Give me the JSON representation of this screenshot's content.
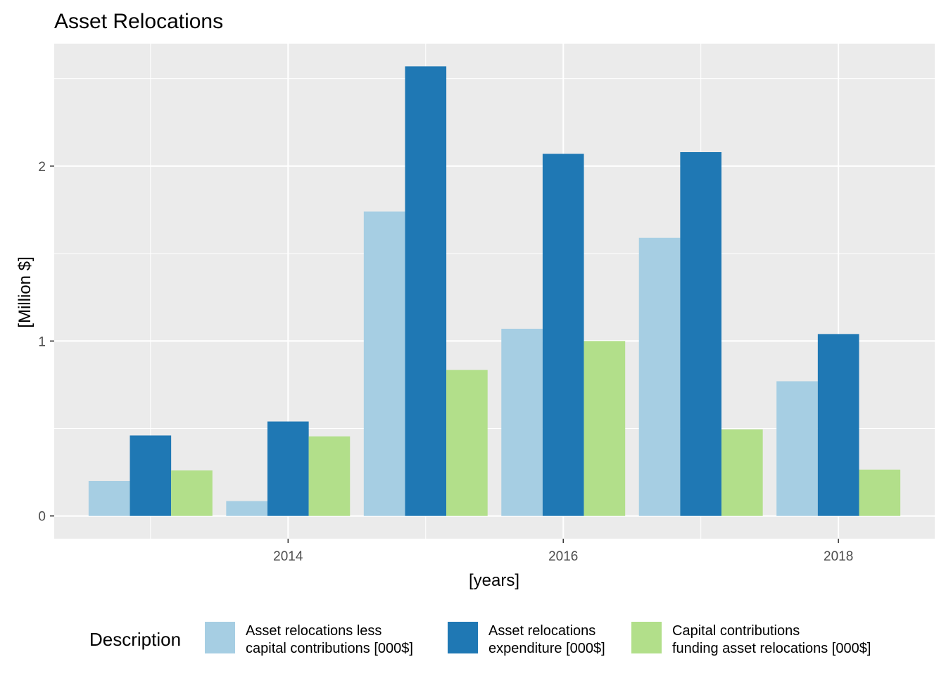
{
  "chart_data": {
    "type": "bar",
    "title": "Asset Relocations",
    "xlabel": "[years]",
    "ylabel": "[Million $]",
    "categories": [
      2013,
      2014,
      2015,
      2016,
      2017,
      2018
    ],
    "xlim": [
      2012.3,
      2018.7
    ],
    "ylim": [
      -0.13,
      2.7
    ],
    "x_ticks": [
      2014,
      2016,
      2018
    ],
    "y_ticks": [
      0,
      1,
      2
    ],
    "x_tick_labels": [
      "2014",
      "2016",
      "2018"
    ],
    "y_tick_labels": [
      "0",
      "1",
      "2"
    ],
    "grid": true,
    "legend_position": "bottom",
    "legend_title": "Description",
    "series": [
      {
        "name": "Asset relocations less capital contributions [000$]",
        "label_lines": [
          "Asset relocations less",
          "capital contributions [000$]"
        ],
        "color": "#A6CEE3",
        "values": [
          0.2,
          0.085,
          1.74,
          1.07,
          1.59,
          0.77
        ]
      },
      {
        "name": "Asset relocations expenditure [000$]",
        "label_lines": [
          "Asset relocations",
          "expenditure [000$]"
        ],
        "color": "#1F78B4",
        "values": [
          0.46,
          0.54,
          2.57,
          2.07,
          2.08,
          1.04
        ]
      },
      {
        "name": "Capital contributions funding asset relocations [000$]",
        "label_lines": [
          "Capital contributions",
          "funding asset relocations [000$]"
        ],
        "color": "#B2DF8A",
        "values": [
          0.26,
          0.455,
          0.835,
          1.0,
          0.495,
          0.265
        ]
      }
    ],
    "panel_background": "#EBEBEB",
    "grid_color": "#FFFFFF"
  }
}
